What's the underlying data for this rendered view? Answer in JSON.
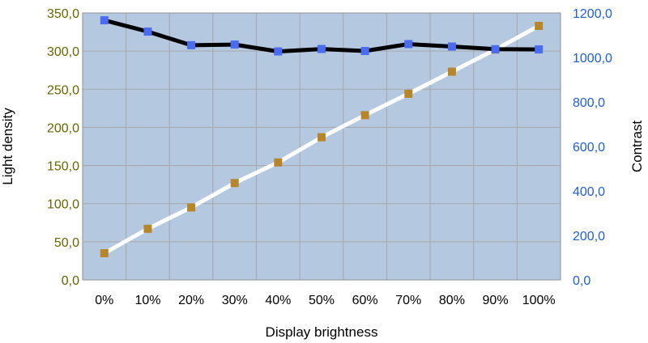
{
  "chart_data": {
    "type": "line",
    "xlabel": "Display brightness",
    "ylabel_left": "Light density",
    "ylabel_right": "Contrast",
    "categories": [
      "0%",
      "10%",
      "20%",
      "30%",
      "40%",
      "50%",
      "60%",
      "70%",
      "80%",
      "90%",
      "100%"
    ],
    "y_left_ticks": [
      "0,0",
      "50,0",
      "100,0",
      "150,0",
      "200,0",
      "250,0",
      "300,0",
      "350,0"
    ],
    "y_right_ticks": [
      "0,0",
      "200,0",
      "400,0",
      "600,0",
      "800,0",
      "1000,0",
      "1200,0"
    ],
    "ylim_left": [
      0,
      350
    ],
    "ylim_right": [
      0,
      1200
    ],
    "grid": true,
    "legend": "none",
    "series": [
      {
        "axis": "left",
        "line_color": "#ffffff",
        "marker_color": "#b8862a",
        "values": [
          35,
          67,
          95,
          127,
          154,
          187,
          216,
          244,
          273,
          302,
          333
        ]
      },
      {
        "axis": "right",
        "line_color": "#000000",
        "marker_color": "#4a6cf0",
        "values": [
          1167,
          1116,
          1055,
          1058,
          1027,
          1038,
          1029,
          1060,
          1049,
          1037,
          1036
        ]
      }
    ],
    "colors": {
      "plot_background": "#b4c8e0",
      "grid": "#a7a7a7",
      "left_tick_text": "#666600",
      "right_tick_text": "#1f5fd6"
    }
  }
}
